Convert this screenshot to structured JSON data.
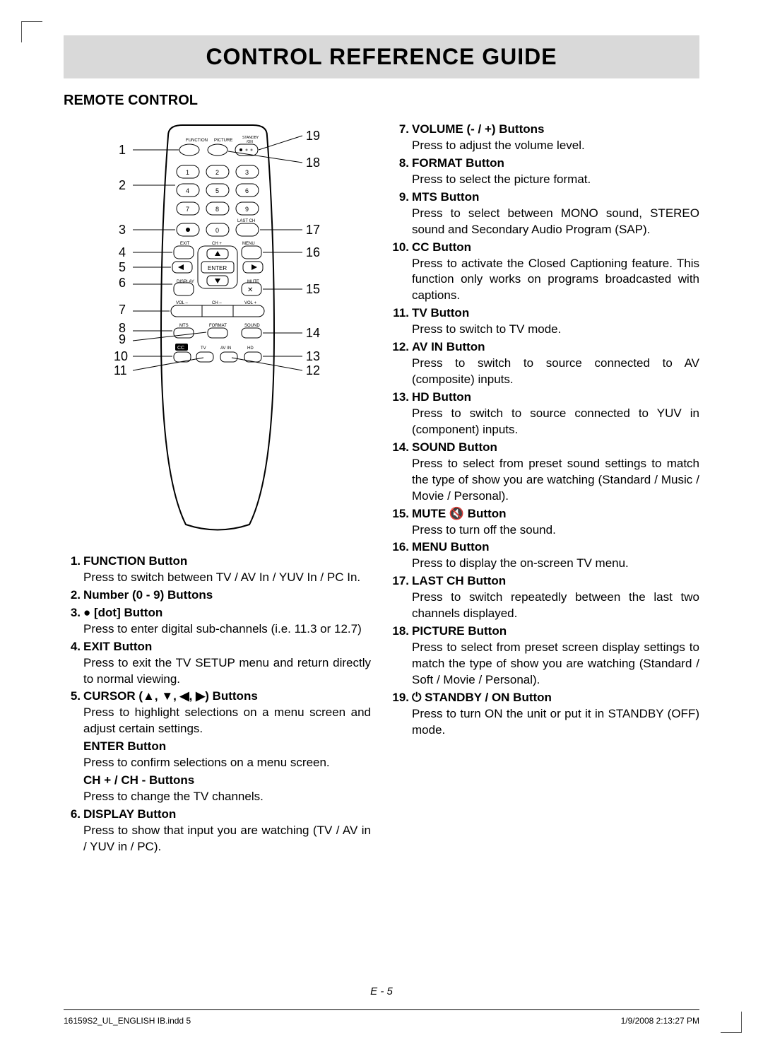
{
  "title": "CONTROL REFERENCE GUIDE",
  "section": "REMOTE CONTROL",
  "page_num": "E - 5",
  "footer_left": "16159S2_UL_ENGLISH IB.indd   5",
  "footer_right": "1/9/2008   2:13:27 PM",
  "col_left": [
    {
      "num": "1.",
      "name": "FUNCTION Button",
      "desc": "Press to switch between TV / AV In / YUV In / PC In."
    },
    {
      "num": "2.",
      "name": "Number (0 - 9) Buttons",
      "desc": ""
    },
    {
      "num": "3.",
      "name": "● [dot] Button",
      "desc": "Press to enter digital sub-channels (i.e. 11.3 or 12.7)"
    },
    {
      "num": "4.",
      "name": "EXIT Button",
      "desc": "Press to exit the TV SETUP menu and return directly to normal viewing."
    },
    {
      "num": "5.",
      "name": "CURSOR (▲, ▼, ◀, ▶) Buttons",
      "desc": "Press to highlight selections on a menu screen and adjust certain settings.",
      "subs": [
        {
          "name": "ENTER Button",
          "desc": "Press to confirm selections on a menu screen."
        },
        {
          "name": "CH + / CH - Buttons",
          "desc": "Press to change the TV channels."
        }
      ]
    },
    {
      "num": "6.",
      "name": "DISPLAY Button",
      "desc": "Press to show that input you are watching (TV / AV in / YUV in / PC)."
    }
  ],
  "col_right": [
    {
      "num": "7.",
      "name": "VOLUME (- / +) Buttons",
      "desc": "Press to adjust the volume level."
    },
    {
      "num": "8.",
      "name": "FORMAT Button",
      "desc": "Press to select the picture format."
    },
    {
      "num": "9.",
      "name": "MTS Button",
      "desc": "Press to select between MONO sound, STEREO sound and Secondary Audio Program (SAP)."
    },
    {
      "num": "10.",
      "name": "CC Button",
      "desc": "Press to activate the Closed Captioning feature. This function only works on programs broadcasted with captions."
    },
    {
      "num": "11.",
      "name": "TV Button",
      "desc": "Press to switch to TV mode."
    },
    {
      "num": "12.",
      "name": "AV IN Button",
      "desc": "Press to switch to source connected to AV (composite) inputs."
    },
    {
      "num": "13.",
      "name": "HD Button",
      "desc": "Press to switch to source connected to YUV in (component) inputs."
    },
    {
      "num": "14.",
      "name": "SOUND Button",
      "desc": "Press to select from preset sound settings to match the type of show you are watching (Standard / Music / Movie / Personal)."
    },
    {
      "num": "15.",
      "name": "MUTE 🔇 Button",
      "desc": "Press to turn off the sound."
    },
    {
      "num": "16.",
      "name": "MENU Button",
      "desc": "Press to display the on-screen TV menu."
    },
    {
      "num": "17.",
      "name": "LAST CH Button",
      "desc": "Press to switch repeatedly between the last two channels displayed."
    },
    {
      "num": "18.",
      "name": "PICTURE Button",
      "desc": "Press to select from preset screen display settings to match the type of show you are watching (Standard / Soft / Movie / Personal)."
    },
    {
      "num": "19.",
      "name": "⏻ STANDBY / ON Button",
      "desc": "Press to turn ON the unit or put it in STANDBY (OFF) mode."
    }
  ],
  "remote": {
    "outline_color": "#000000",
    "bg_color": "#ffffff",
    "top_labels": [
      "FUNCTION",
      "PICTURE",
      "STANDBY",
      "/ON"
    ],
    "left_callouts": [
      1,
      2,
      3,
      4,
      5,
      6,
      7,
      8,
      9,
      10,
      11
    ],
    "right_callouts": [
      19,
      18,
      17,
      16,
      15,
      14,
      13,
      12
    ],
    "rows": {
      "num_buttons": [
        "1",
        "2",
        "3",
        "4",
        "5",
        "6",
        "7",
        "8",
        "9",
        "●",
        "0"
      ],
      "last_ch": "LAST CH",
      "exit": "EXIT",
      "ch_plus": "CH +",
      "menu": "MENU",
      "enter": "ENTER",
      "display": "DISPLAY",
      "mute": "MUTE",
      "vol_minus": "VOL –",
      "ch_minus": "CH –",
      "vol_plus": "VOL +",
      "row_labels": [
        "MTS",
        "FORMAT",
        "SOUND"
      ],
      "bottom_labels": [
        "CC",
        "TV",
        "AV IN",
        "HD"
      ]
    }
  }
}
